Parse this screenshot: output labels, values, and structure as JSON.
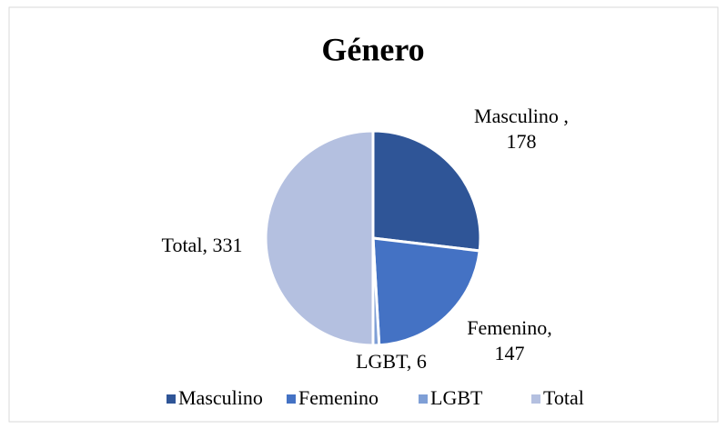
{
  "chart_data": {
    "type": "pie",
    "title": "Género",
    "categories": [
      "Masculino",
      "Femenino",
      "LGBT",
      "Total"
    ],
    "values": [
      178,
      147,
      6,
      331
    ],
    "value_labels": [
      "Masculino , 178",
      "Femenino, 147",
      "LGBT, 6",
      "Total, 331"
    ],
    "colors": [
      "#2f5597",
      "#4472c4",
      "#7f9fd6",
      "#b4c0e0"
    ],
    "legend": "bottom"
  }
}
